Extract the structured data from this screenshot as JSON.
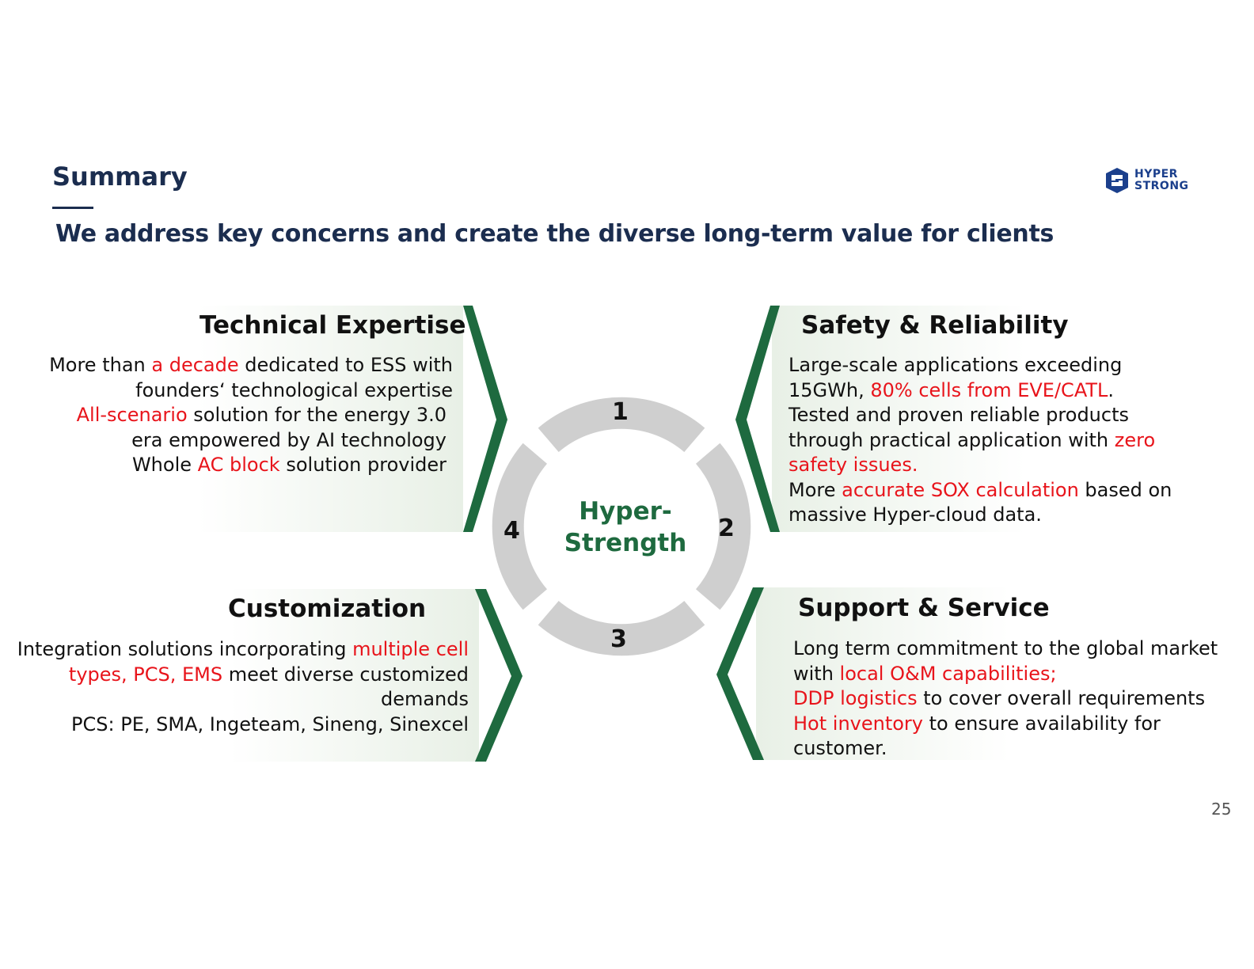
{
  "header": {
    "title": "Summary",
    "subtitle": "We address key concerns and create the diverse long-term value for clients"
  },
  "logo": {
    "line1": "HYPER",
    "line2": "STRONG",
    "color": "#1b3f8c"
  },
  "center": {
    "line1": "Hyper-",
    "line2": "Strength"
  },
  "numbers": {
    "one": "1",
    "two": "2",
    "three": "3",
    "four": "4"
  },
  "quadrants": {
    "technical": {
      "heading": "Technical Expertise",
      "l1a": "More than ",
      "l1b": "a decade",
      "l1c": " dedicated to ESS with",
      "l2": "founders‘ technological expertise",
      "l3a": "All-scenario",
      "l3b": " solution for the energy 3.0",
      "l4": "era empowered by AI technology",
      "l5a": "Whole ",
      "l5b": "AC block",
      "l5c": " solution provider"
    },
    "safety": {
      "heading": "Safety & Reliability",
      "l1": "Large-scale applications exceeding",
      "l2a": "15GWh, ",
      "l2b": "80% cells from EVE/CATL",
      "l2c": ".",
      "l3": "Tested and proven reliable products",
      "l4a": "through practical application with ",
      "l4b": "zero",
      "l5": "safety issues.",
      "l6a": "More ",
      "l6b": "accurate SOX calculation",
      "l6c": " based on",
      "l7": "massive Hyper-cloud data."
    },
    "customization": {
      "heading": "Customization",
      "l1a": "Integration solutions incorporating ",
      "l1b": "multiple cell",
      "l2a": "types, PCS, EMS",
      "l2b": " meet diverse customized",
      "l3": "demands",
      "l4": "PCS: PE, SMA, Ingeteam, Sineng, Sinexcel"
    },
    "support": {
      "heading": "Support & Service",
      "l1": "Long term commitment to the global market",
      "l2a": "with ",
      "l2b": "local O&M capabilities;",
      "l3a": "DDP logistics",
      "l3b": " to cover overall requirements",
      "l4a": "Hot inventory",
      "l4b": " to ensure availability for",
      "l5": "customer."
    }
  },
  "page_number": "25",
  "colors": {
    "navy": "#1b2d4f",
    "accent_red": "#e8141b",
    "chevron_green": "#1e6a3f",
    "ring_gray": "#cfcfcf"
  }
}
